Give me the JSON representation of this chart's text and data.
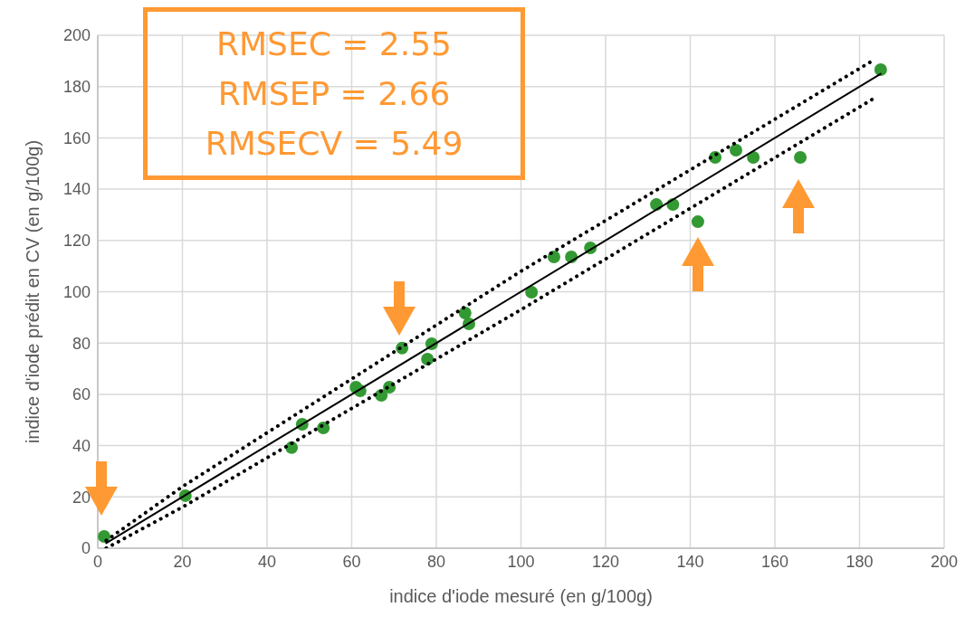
{
  "chart_data": {
    "type": "scatter",
    "xlabel": "indice d'iode mesuré (en g/100g)",
    "ylabel": "indice d'iode prédit en CV (en g/100g)",
    "annotations": [
      "RMSEC = 2.55",
      "RMSEP = 2.66",
      "RMSECV = 5.49"
    ],
    "xlim": [
      0,
      200
    ],
    "ylim": [
      0,
      200
    ],
    "xticks": [
      0,
      20,
      40,
      60,
      80,
      100,
      120,
      140,
      160,
      180,
      200
    ],
    "yticks": [
      0,
      20,
      40,
      60,
      80,
      100,
      120,
      140,
      160,
      180,
      200
    ],
    "grid": true,
    "series": [
      {
        "type": "scatter",
        "color": "#339933",
        "marker": "circle",
        "x": [
          1.5,
          20.7,
          45.8,
          48.3,
          53.3,
          61,
          62,
          67,
          68.9,
          71.9,
          77.9,
          78.9,
          86.8,
          87.7,
          102.5,
          107.8,
          111.9,
          116.4,
          132,
          135.9,
          141.8,
          145.9,
          150.8,
          154.9,
          166,
          185
        ],
        "values": [
          4.6,
          20.5,
          39.2,
          48.3,
          46.9,
          62.8,
          61.4,
          59.6,
          62.8,
          78,
          73.7,
          79.7,
          91.7,
          87.5,
          99.8,
          113.6,
          113.6,
          117.1,
          134,
          134,
          127.3,
          152.4,
          155.2,
          152.4,
          152.4,
          186.6
        ]
      },
      {
        "type": "line",
        "color": "#000000",
        "marker": "none",
        "line_style": "solid",
        "x": [
          2,
          185
        ],
        "values": [
          2,
          185
        ]
      },
      {
        "type": "line",
        "color": "#000000",
        "marker": "none",
        "line_style": "dotted",
        "x": [
          2,
          20,
          100,
          183
        ],
        "values": [
          3,
          24,
          108,
          190
        ]
      },
      {
        "type": "line",
        "color": "#000000",
        "marker": "none",
        "line_style": "dotted",
        "x": [
          2,
          20,
          100,
          183
        ],
        "values": [
          0,
          16,
          93,
          175
        ]
      }
    ]
  }
}
